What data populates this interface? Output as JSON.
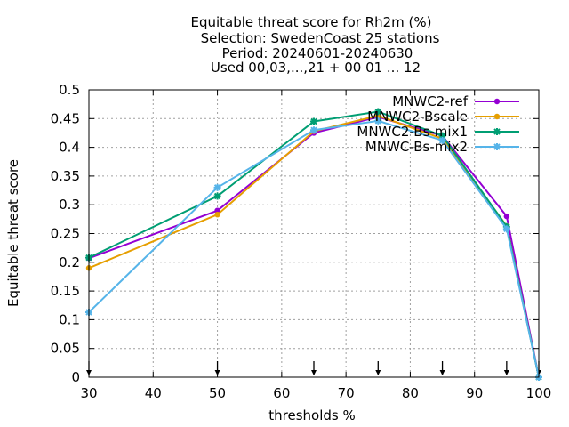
{
  "chart_data": {
    "type": "line",
    "title_lines": [
      "Equitable threat score  for Rh2m (%)",
      "Selection: SwedenCoast     25 stations",
      "Period: 20240601-20240630",
      "Used 00,03,...,21 + 00 01 ... 12"
    ],
    "xlabel": "thresholds %",
    "ylabel": "Equitable threat score",
    "xlim": [
      30,
      100
    ],
    "ylim": [
      0,
      0.5
    ],
    "x_ticks": [
      30,
      40,
      50,
      60,
      70,
      80,
      90,
      100
    ],
    "x_tick_labels": [
      "30",
      "40",
      "50",
      "60",
      "70",
      "80",
      "90",
      "100"
    ],
    "y_ticks": [
      0,
      0.05,
      0.1,
      0.15,
      0.2,
      0.25,
      0.3,
      0.35,
      0.4,
      0.45,
      0.5
    ],
    "y_tick_labels": [
      "0",
      "0.05",
      "0.1",
      "0.15",
      "0.2",
      "0.25",
      "0.3",
      "0.35",
      "0.4",
      "0.45",
      "0.5"
    ],
    "grid": true,
    "legend_position": "top-right",
    "threshold_markers": [
      30,
      50,
      65,
      75,
      85,
      95,
      100
    ],
    "x": [
      30,
      50,
      65,
      75,
      85,
      95,
      100
    ],
    "series": [
      {
        "name": "MNWC2-ref",
        "color": "#9400d3",
        "marker": "circle",
        "values": [
          0.207,
          0.29,
          0.425,
          0.453,
          0.42,
          0.28,
          0.0
        ]
      },
      {
        "name": "MNWC2-Bscale",
        "color": "#e69f00",
        "marker": "circle",
        "values": [
          0.19,
          0.283,
          0.428,
          0.455,
          0.415,
          0.263,
          0.0
        ]
      },
      {
        "name": "MNWC2-Bs-mix1",
        "color": "#009e73",
        "marker": "star",
        "values": [
          0.208,
          0.315,
          0.445,
          0.462,
          0.42,
          0.262,
          0.0
        ]
      },
      {
        "name": "MNWC-Bs-mix2",
        "color": "#56b4e9",
        "marker": "star",
        "values": [
          0.113,
          0.33,
          0.43,
          0.446,
          0.412,
          0.258,
          0.0
        ]
      }
    ]
  }
}
